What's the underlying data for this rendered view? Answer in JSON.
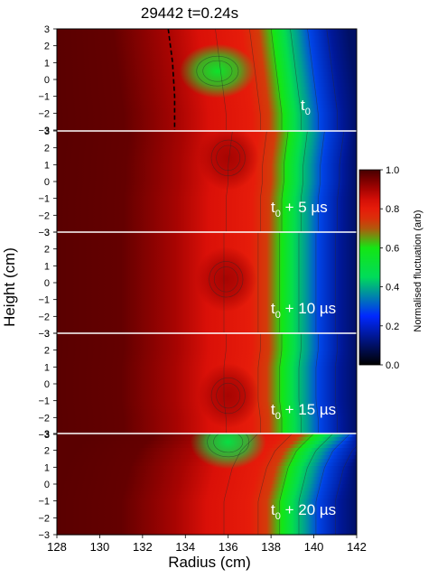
{
  "chart_data": {
    "type": "heatmap",
    "title": "29442 t=0.24s",
    "xlabel": "Radius (cm)",
    "ylabel": "Height (cm)",
    "xlim": [
      128,
      142
    ],
    "ylim": [
      -3,
      3
    ],
    "xticks": [
      128,
      130,
      132,
      134,
      136,
      138,
      140,
      142
    ],
    "yticks": [
      3,
      2,
      1,
      0,
      -1,
      -2,
      -3
    ],
    "colorbar": {
      "label": "Normalised fluctuation (arb)",
      "ticks": [
        "1.0",
        "0.8",
        "0.6",
        "0.4",
        "0.2",
        "0.0"
      ],
      "range": [
        0,
        1
      ],
      "colormap": [
        "#000000",
        "#0000ff",
        "#00ff00",
        "#ff0000",
        "#4a0000"
      ]
    },
    "panels": [
      {
        "label_main": "t",
        "label_sub": "0",
        "label_rest": "",
        "front_radius_by_height": [
          [
            3,
            138.6
          ],
          [
            2,
            138.7
          ],
          [
            1,
            138.8
          ],
          [
            0,
            138.9
          ],
          [
            -1,
            139.0
          ],
          [
            -2,
            139.1
          ],
          [
            -3,
            139.1
          ]
        ],
        "feature": {
          "type": "green-notch",
          "r": 135.5,
          "z": 0.5,
          "value": 0.55
        },
        "reference_line": {
          "r_by_height": [
            [
              3,
              133.2
            ],
            [
              1,
              133.4
            ],
            [
              -1,
              133.5
            ],
            [
              -3,
              133.5
            ]
          ]
        }
      },
      {
        "label_main": "t",
        "label_sub": "0",
        "label_rest": " + 5 µs",
        "front_radius_by_height": [
          [
            3,
            139.4
          ],
          [
            2,
            139.3
          ],
          [
            1,
            139.2
          ],
          [
            0,
            139.2
          ],
          [
            -1,
            139.1
          ],
          [
            -2,
            139.1
          ],
          [
            -3,
            139.1
          ]
        ],
        "feature": {
          "type": "blob",
          "r": 136.0,
          "z": 1.4,
          "value": 0.9
        }
      },
      {
        "label_main": "t",
        "label_sub": "0",
        "label_rest": " + 10 µs",
        "front_radius_by_height": [
          [
            3,
            139.0
          ],
          [
            2,
            139.0
          ],
          [
            1,
            139.0
          ],
          [
            0,
            139.0
          ],
          [
            -1,
            139.0
          ],
          [
            -2,
            139.0
          ],
          [
            -3,
            139.0
          ]
        ],
        "feature": {
          "type": "blob",
          "r": 135.9,
          "z": 0.2,
          "value": 0.9
        }
      },
      {
        "label_main": "t",
        "label_sub": "0",
        "label_rest": " + 15 µs",
        "front_radius_by_height": [
          [
            3,
            139.1
          ],
          [
            2,
            139.1
          ],
          [
            1,
            139.0
          ],
          [
            0,
            139.0
          ],
          [
            -1,
            139.0
          ],
          [
            -2,
            139.1
          ],
          [
            -3,
            139.1
          ]
        ],
        "feature": {
          "type": "blob",
          "r": 136.0,
          "z": -0.7,
          "value": 0.9
        }
      },
      {
        "label_main": "t",
        "label_sub": "0",
        "label_rest": " + 20 µs",
        "front_radius_by_height": [
          [
            3,
            140.6
          ],
          [
            2,
            139.8
          ],
          [
            1,
            139.4
          ],
          [
            0,
            139.2
          ],
          [
            -1,
            139.0
          ],
          [
            -2,
            139.0
          ],
          [
            -3,
            139.0
          ]
        ],
        "feature": {
          "type": "green-notch",
          "r": 136.0,
          "z": 2.5,
          "value": 0.5
        }
      }
    ]
  }
}
